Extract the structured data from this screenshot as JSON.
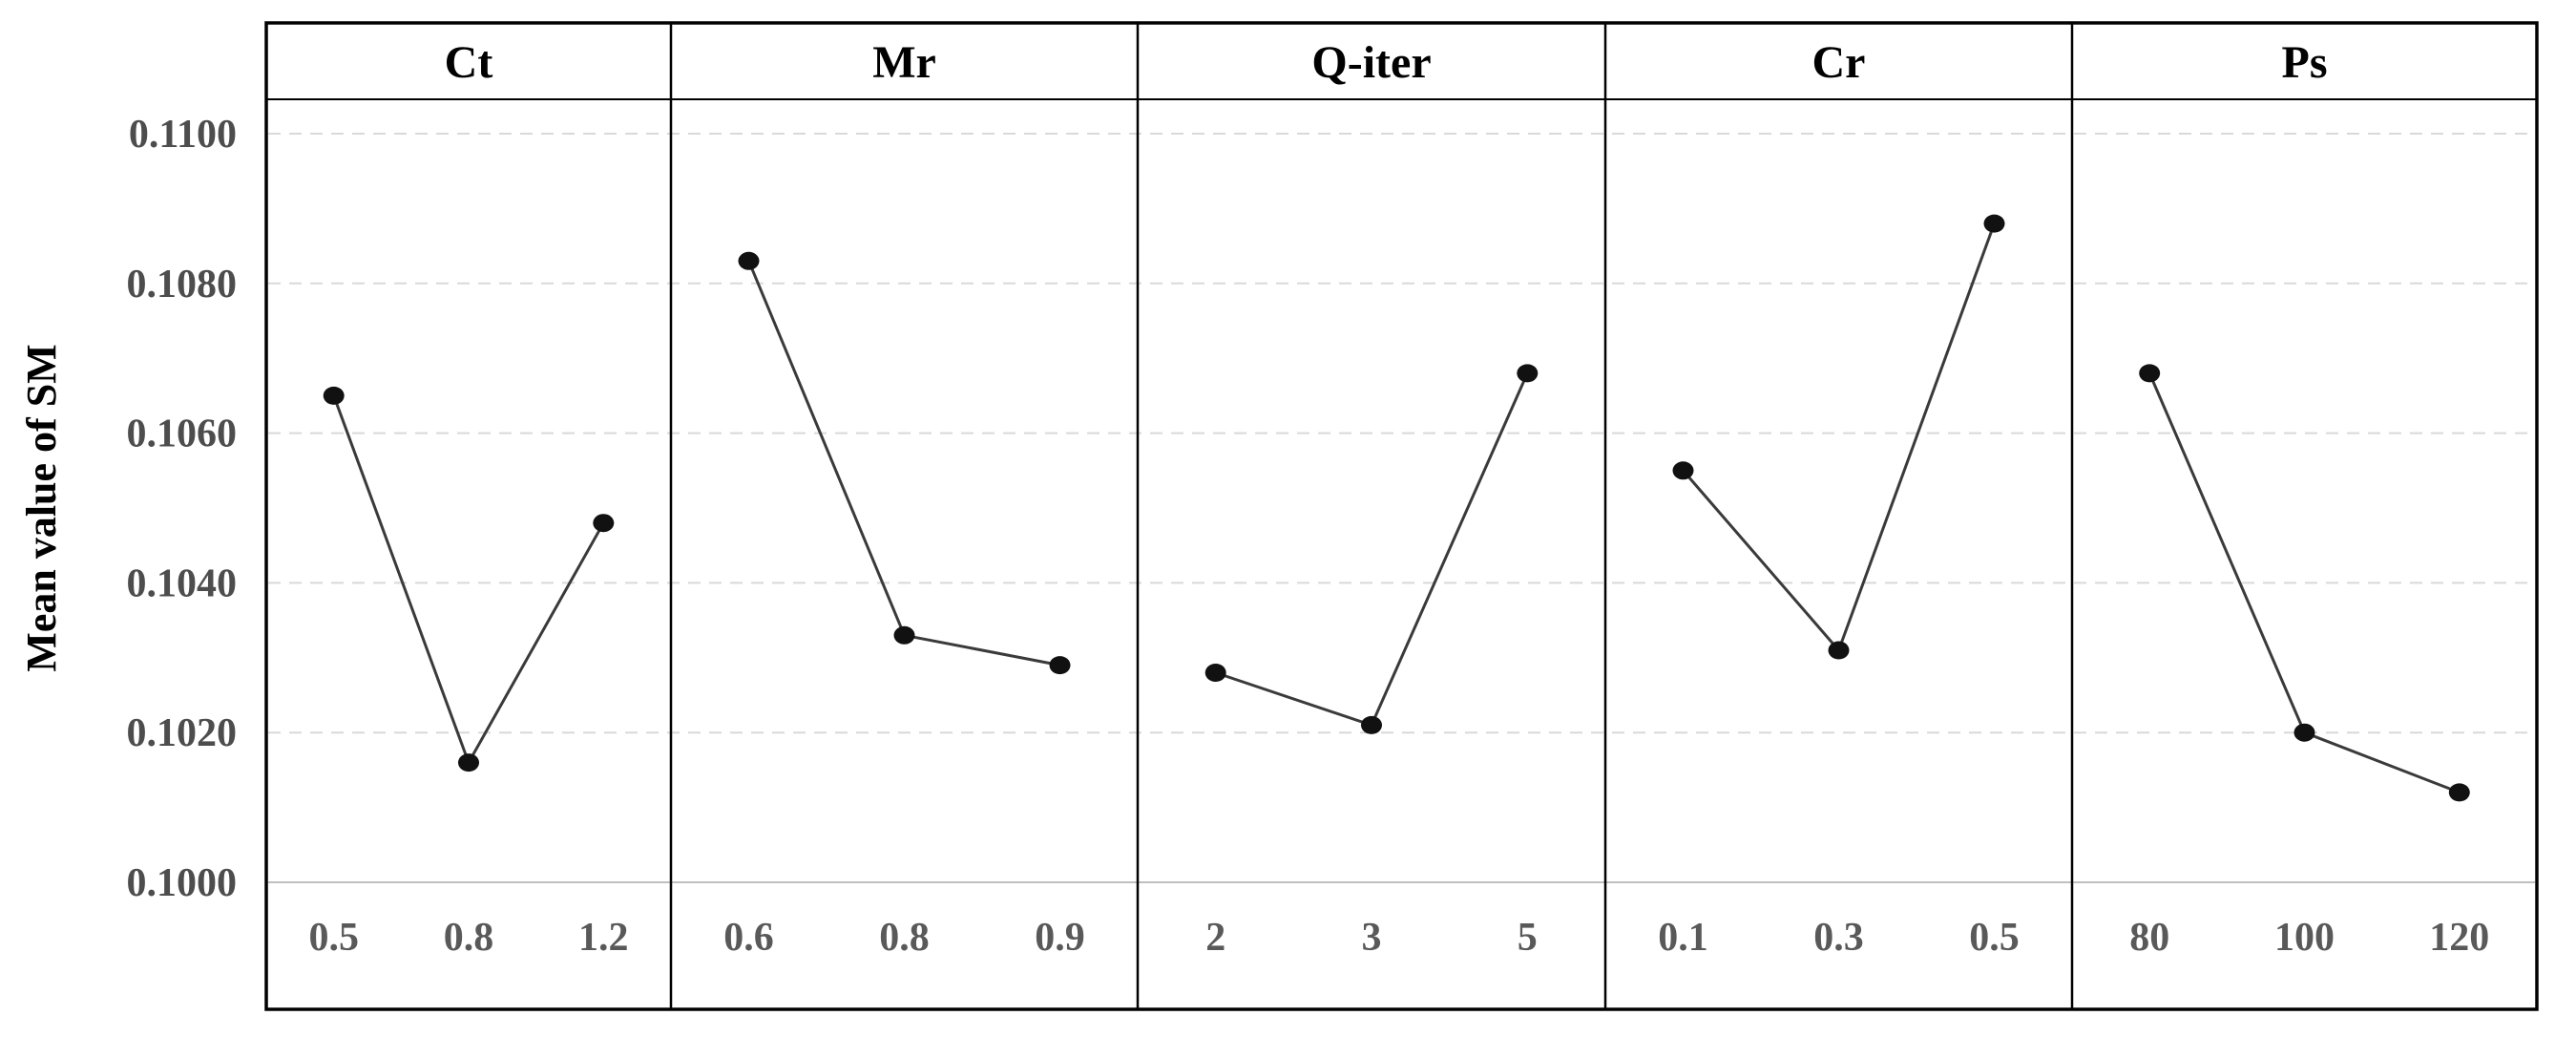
{
  "chart_data": {
    "type": "line",
    "title": "",
    "subtitle": "",
    "ylabel": "Mean value of SM",
    "xlabel": "",
    "ylim": [
      0.1,
      0.11
    ],
    "y_tick_interval": 0.002,
    "y_ticks": [
      "0.1100",
      "0.1080",
      "0.1060",
      "0.1040",
      "0.1020",
      "0.1000"
    ],
    "grid": "horizontal, dashed, light gray; bottom axis solid light gray",
    "legend": "none",
    "marker": "filled black circle",
    "panels": [
      {
        "factor": "Ct",
        "levels": [
          "0.5",
          "0.8",
          "1.2"
        ],
        "values": [
          0.1065,
          0.1016,
          0.1048
        ]
      },
      {
        "factor": "Mr",
        "levels": [
          "0.6",
          "0.8",
          "0.9"
        ],
        "values": [
          0.1083,
          0.1033,
          0.1029
        ]
      },
      {
        "factor": "Q-iter",
        "levels": [
          "2",
          "3",
          "5"
        ],
        "values": [
          0.1028,
          0.1021,
          0.1068
        ]
      },
      {
        "factor": "Cr",
        "levels": [
          "0.1",
          "0.3",
          "0.5"
        ],
        "values": [
          0.1055,
          0.1031,
          0.1088
        ]
      },
      {
        "factor": "Ps",
        "levels": [
          "80",
          "100",
          "120"
        ],
        "values": [
          0.1068,
          0.102,
          0.1012
        ]
      }
    ],
    "colors": {
      "background": "#ffffff",
      "frame": "#000000",
      "panel_separator": "#000000",
      "gridline_dashed": "#d9d9d9",
      "axis_line_solid": "#bfbfbf",
      "series_line": "#3a3a3a",
      "marker_fill": "#111111",
      "y_tick_label": "#4d4d4d",
      "x_tick_label": "#595959",
      "header_text": "#000000",
      "y_title_text": "#000000"
    }
  }
}
